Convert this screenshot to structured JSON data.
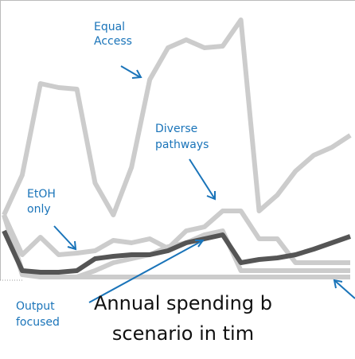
{
  "chart_data": {
    "type": "line",
    "title": [
      "Annual spending b",
      "scenario in tim"
    ],
    "categories": [
      null,
      null,
      null,
      null,
      null,
      null,
      null,
      null,
      null,
      null,
      null,
      null,
      null,
      null,
      null,
      null,
      null,
      null,
      null,
      null
    ],
    "ylim": [
      0,
      352
    ],
    "series": [
      {
        "color": "#cccccc",
        "values": [
          82,
          132,
          247,
          242,
          240,
          122,
          82,
          142,
          252,
          292,
          302,
          292,
          294,
          327,
          87,
          107,
          137,
          157,
          167,
          182
        ]
      },
      {
        "color": "#cccccc",
        "values": [
          82,
          32,
          54,
          32,
          34,
          37,
          50,
          47,
          52,
          40,
          62,
          67,
          87,
          87,
          52,
          52,
          22,
          22,
          22,
          22
        ]
      },
      {
        "color": "#cccccc",
        "values": [
          82,
          12,
          4,
          4,
          4,
          12,
          22,
          27,
          32,
          42,
          47,
          57,
          62,
          12,
          12,
          12,
          12,
          12,
          12,
          12
        ]
      },
      {
        "color": "#cccccc",
        "values": [
          82,
          7,
          4,
          4,
          4,
          4,
          4,
          4,
          4,
          4,
          4,
          4,
          4,
          4,
          4,
          4,
          4,
          4,
          4,
          4
        ]
      },
      {
        "color": "#555555",
        "values": [
          62,
          12,
          10,
          10,
          12,
          27,
          30,
          32,
          32,
          37,
          47,
          52,
          57,
          22,
          26,
          28,
          32,
          39,
          47,
          55
        ]
      }
    ],
    "annotations": [
      {
        "lines": [
          "Equal",
          "Access"
        ]
      },
      {
        "lines": [
          "Diverse",
          "pathways"
        ]
      },
      {
        "lines": [
          "EtOH",
          "only"
        ]
      },
      {
        "lines": [
          "Output",
          "focused"
        ]
      }
    ]
  }
}
